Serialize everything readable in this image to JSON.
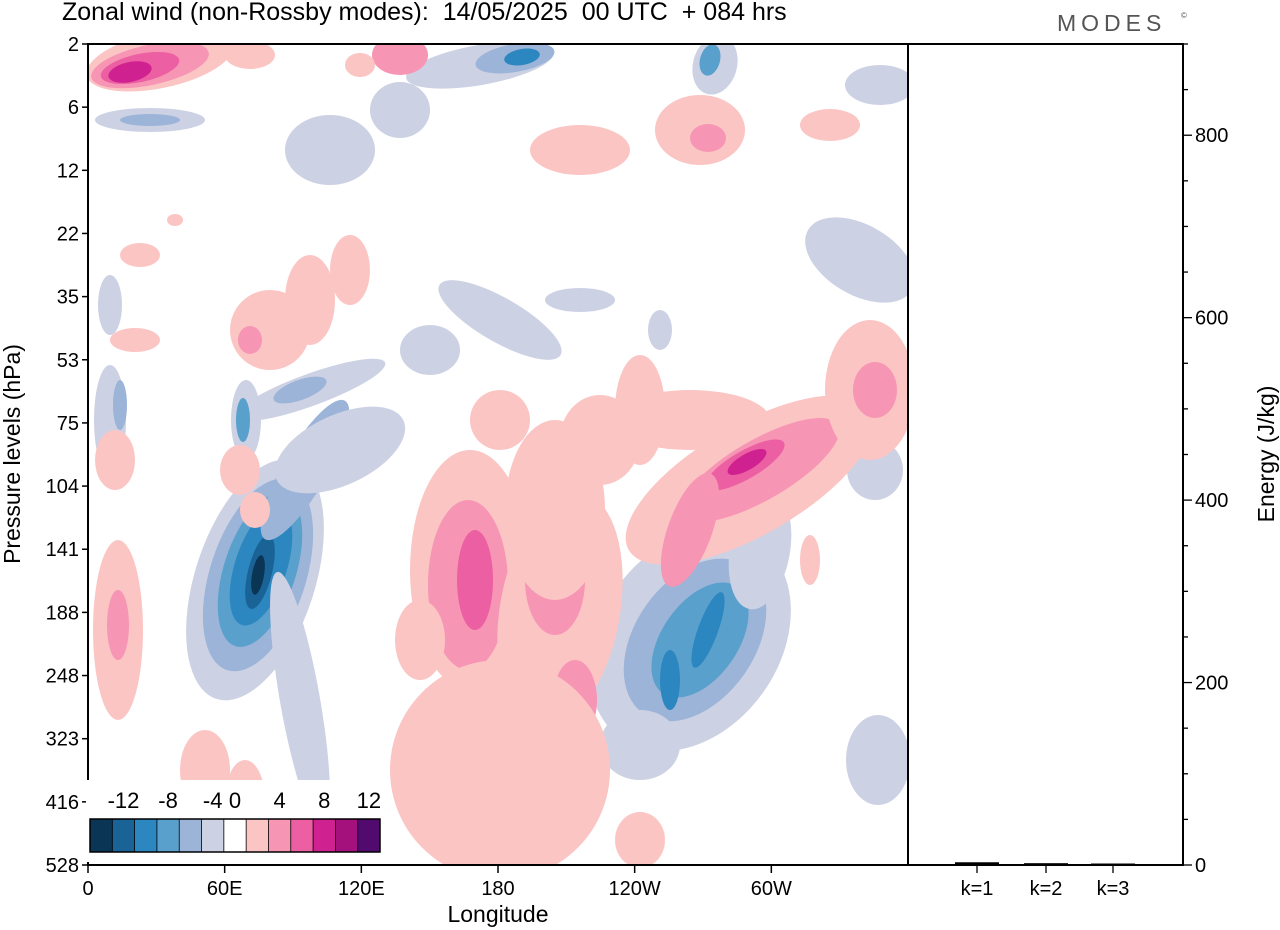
{
  "chart_data": {
    "type": "heatmap",
    "title": "Zonal wind (non-Rossby modes):  14/05/2025  00 UTC  + 084 hrs",
    "brand": "MODES",
    "brand_mark": "©",
    "xlabel": "Longitude",
    "ylabel": "Pressure levels (hPa)",
    "x_ticks": [
      "0",
      "60E",
      "120E",
      "180",
      "120W",
      "60W"
    ],
    "x_tick_lon": [
      0,
      60,
      120,
      180,
      240,
      300
    ],
    "xlim": [
      0,
      360
    ],
    "y_ticks": [
      "2",
      "6",
      "12",
      "22",
      "35",
      "53",
      "75",
      "104",
      "141",
      "188",
      "248",
      "323",
      "416",
      "528"
    ],
    "colorbar": {
      "tick_labels": [
        "-12",
        "-8",
        "-4",
        "0",
        "4",
        "8",
        "12"
      ],
      "levels": [
        -14,
        -12,
        -10,
        -8,
        -6,
        -4,
        -2,
        2,
        4,
        6,
        8,
        10,
        12,
        14
      ],
      "colors": [
        "#0b3554",
        "#1a6396",
        "#2c86c0",
        "#5aa0cc",
        "#9bb4d8",
        "#cdd1e4",
        "#ffffff",
        "#fbc5c4",
        "#f795b4",
        "#ec5fa2",
        "#cf2290",
        "#a4117c",
        "#520a6e"
      ]
    },
    "features": [
      {
        "lon": 75,
        "level": "141-188",
        "value": -14
      },
      {
        "lon": 262,
        "level": "188-248",
        "value": -8
      },
      {
        "lon": 170,
        "level": "141-188",
        "value": 8
      },
      {
        "lon": 280,
        "level": "75-104",
        "value": 10
      },
      {
        "lon": 15,
        "level": "2",
        "value": 10
      },
      {
        "lon": 190,
        "level": "2-6",
        "value": -8
      },
      {
        "lon": 340,
        "level": "53-75",
        "value": 6
      },
      {
        "lon": 13,
        "level": "188",
        "value": 6
      },
      {
        "lon": 215,
        "level": "248",
        "value": 6
      }
    ],
    "energy_panel": {
      "ylabel": "Energy (J/kg)",
      "y_ticks": [
        "0",
        "200",
        "400",
        "600",
        "800"
      ],
      "ylim": [
        0,
        900
      ],
      "categories": [
        "k=1",
        "k=2",
        "k=3"
      ],
      "values": [
        3,
        2,
        1
      ]
    }
  }
}
